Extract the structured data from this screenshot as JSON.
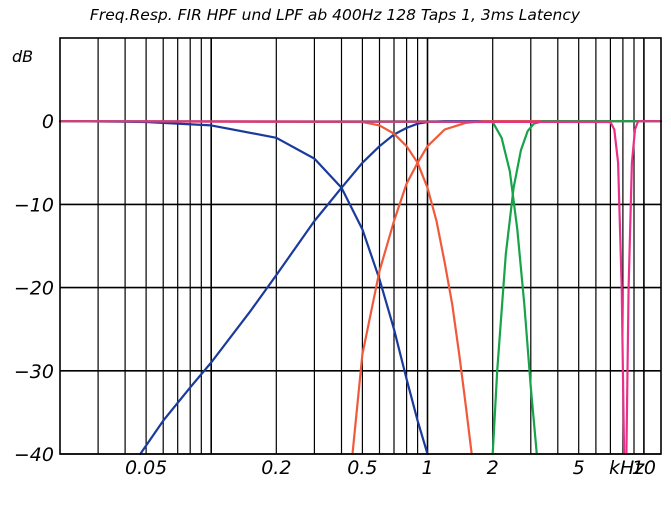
{
  "chart_data": {
    "type": "line",
    "title": "Freq.Resp. FIR HPF und LPF ab 400Hz 128 Taps 1, 3ms Latency",
    "ylabel": "dB",
    "xunit": "kHz",
    "xscale": "log",
    "xlim": [
      0.02,
      12
    ],
    "ylim": [
      -40,
      10
    ],
    "grid": true,
    "yticks": [
      {
        "value": 0,
        "label": "0"
      },
      {
        "value": -10,
        "label": "−10"
      },
      {
        "value": -20,
        "label": "−20"
      },
      {
        "value": -30,
        "label": "−30"
      },
      {
        "value": -40,
        "label": "−40"
      }
    ],
    "xticks": [
      {
        "value": 0.05,
        "label": "0.05"
      },
      {
        "value": 0.2,
        "label": "0.2"
      },
      {
        "value": 0.5,
        "label": "0.5"
      },
      {
        "value": 1,
        "label": "1"
      },
      {
        "value": 2,
        "label": "2"
      },
      {
        "value": 5,
        "label": "5"
      },
      {
        "value": 10,
        "label": "10"
      }
    ],
    "series": [
      {
        "color": "#1a3a9c",
        "x": [
          0.02,
          0.05,
          0.1,
          0.2,
          0.3,
          0.4,
          0.5,
          0.6,
          0.7,
          0.8,
          0.9,
          1.0
        ],
        "y": [
          0,
          -0.1,
          -0.5,
          -2,
          -4.5,
          -8,
          -13,
          -19,
          -25,
          -31,
          -36,
          -40
        ]
      },
      {
        "color": "#1a3a9c",
        "x": [
          0.047,
          0.06,
          0.08,
          0.1,
          0.15,
          0.2,
          0.3,
          0.4,
          0.5,
          0.6,
          0.7,
          0.8,
          0.9,
          1.0,
          1.2,
          12
        ],
        "y": [
          -40,
          -36,
          -32,
          -29,
          -23,
          -18.5,
          -12,
          -8,
          -5,
          -3,
          -1.6,
          -0.8,
          -0.3,
          -0.1,
          0,
          0
        ]
      },
      {
        "color": "#f05a3a",
        "x": [
          0.02,
          0.5,
          0.6,
          0.7,
          0.8,
          0.9,
          1.0,
          1.1,
          1.2,
          1.3,
          1.4,
          1.5,
          1.6
        ],
        "y": [
          0,
          -0.1,
          -0.5,
          -1.5,
          -3,
          -5,
          -8,
          -12,
          -17,
          -22,
          -28,
          -34,
          -40
        ]
      },
      {
        "color": "#f05a3a",
        "x": [
          0.45,
          0.5,
          0.6,
          0.7,
          0.8,
          0.9,
          1.0,
          1.2,
          1.5,
          1.8,
          2.0,
          12
        ],
        "y": [
          -40,
          -28,
          -18,
          -12,
          -7.5,
          -5,
          -3,
          -1,
          -0.2,
          0,
          0,
          0
        ]
      },
      {
        "color": "#16a34a",
        "x": [
          0.02,
          2.0,
          2.2,
          2.4,
          2.6,
          2.8,
          3.0,
          3.2
        ],
        "y": [
          0,
          -0.1,
          -2,
          -6,
          -13,
          -22,
          -32,
          -40
        ]
      },
      {
        "color": "#16a34a",
        "x": [
          2.0,
          2.1,
          2.3,
          2.5,
          2.7,
          2.9,
          3.1,
          3.4,
          12
        ],
        "y": [
          -40,
          -30,
          -16,
          -8,
          -3.5,
          -1.2,
          -0.3,
          0,
          0
        ]
      },
      {
        "color": "#e8308a",
        "x": [
          0.02,
          7.0,
          7.3,
          7.6,
          7.9,
          8.1
        ],
        "y": [
          0,
          -0.1,
          -1,
          -5,
          -20,
          -40
        ]
      },
      {
        "color": "#e8308a",
        "x": [
          8.3,
          8.5,
          8.8,
          9.1,
          9.4,
          12
        ],
        "y": [
          -40,
          -20,
          -5,
          -1,
          0,
          0
        ]
      }
    ]
  }
}
